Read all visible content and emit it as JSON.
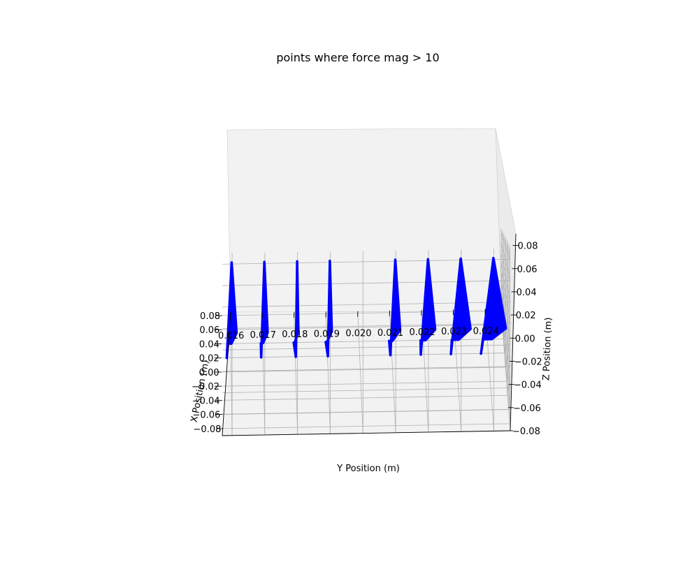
{
  "chart_data": {
    "type": "scatter",
    "projection": "3d",
    "title": "points where force mag > 10",
    "xlabel": "X Position (m)",
    "ylabel": "Y Position (m)",
    "zlabel": "Z Position (m)",
    "xlim": [
      -0.09,
      0.08
    ],
    "ylim": [
      0.0157,
      0.0245
    ],
    "zlim": [
      -0.08,
      0.09
    ],
    "grid": true,
    "marker_color": "#0000ff",
    "x_ticks": [
      "−0.08",
      "−0.06",
      "−0.04",
      "−0.02",
      "0.00",
      "0.02",
      "0.04",
      "0.06",
      "0.08"
    ],
    "y_ticks": [
      "0.016",
      "0.017",
      "0.018",
      "0.019",
      "0.020",
      "0.021",
      "0.022",
      "0.023",
      "0.024"
    ],
    "z_ticks": [
      "−0.08",
      "−0.06",
      "−0.04",
      "−0.02",
      "0.00",
      "0.02",
      "0.04",
      "0.06",
      "0.08"
    ],
    "series": [
      {
        "y": 0.016,
        "x_min": -0.08,
        "x_max": 0.04,
        "z_min": -0.08,
        "z_max": 0.08,
        "half_width": 0.00015
      },
      {
        "y": 0.017,
        "x_min": -0.08,
        "x_max": 0.04,
        "z_min": -0.08,
        "z_max": 0.08,
        "half_width": 0.0001
      },
      {
        "y": 0.018,
        "x_min": -0.08,
        "x_max": 0.04,
        "z_min": -0.08,
        "z_max": 0.08,
        "half_width": 4e-05
      },
      {
        "y": 0.019,
        "x_min": -0.08,
        "x_max": 0.04,
        "z_min": -0.08,
        "z_max": 0.08,
        "half_width": 6e-05
      },
      {
        "y": 0.021,
        "x_min": -0.08,
        "x_max": 0.04,
        "z_min": -0.08,
        "z_max": 0.08,
        "half_width": 0.00015
      },
      {
        "y": 0.022,
        "x_min": -0.08,
        "x_max": 0.04,
        "z_min": -0.08,
        "z_max": 0.08,
        "half_width": 0.00022
      },
      {
        "y": 0.023,
        "x_min": -0.08,
        "x_max": 0.04,
        "z_min": -0.08,
        "z_max": 0.08,
        "half_width": 0.0003
      },
      {
        "y": 0.024,
        "x_min": -0.08,
        "x_max": 0.04,
        "z_min": -0.08,
        "z_max": 0.08,
        "half_width": 0.00038
      }
    ]
  }
}
